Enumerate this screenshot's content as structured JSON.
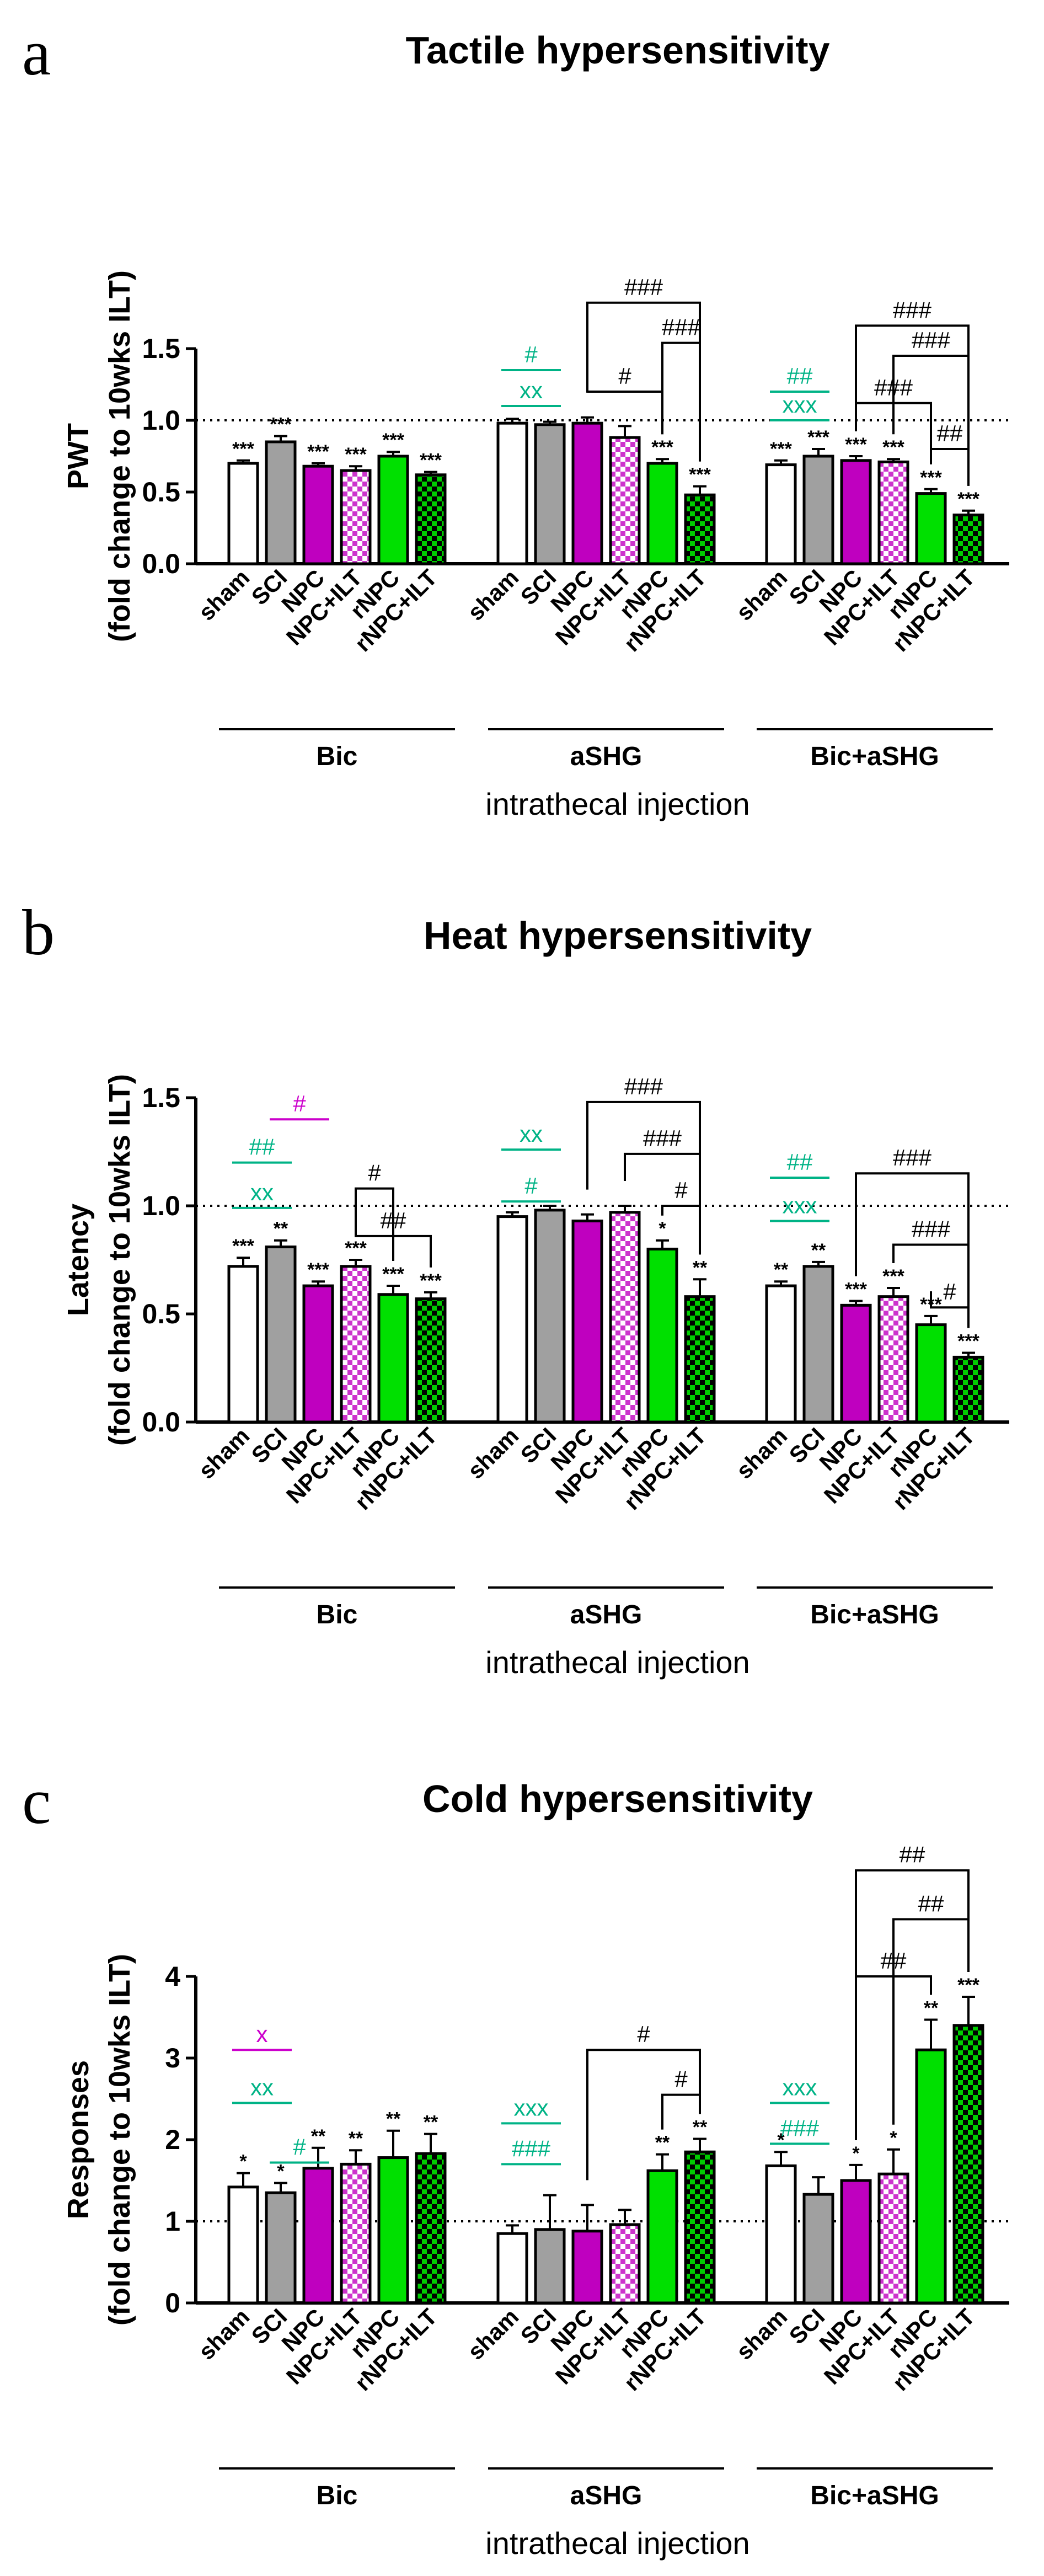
{
  "colors": {
    "sham": "#ffffff",
    "SCI": "#a0a0a0",
    "NPC": "#bf00bf",
    "NPC+ILT": "checker #cc33cc/#ffffff",
    "rNPC": "#00e000",
    "rNPC+ILT": "checker #00cc00/#000000",
    "teal_annotation": "#00b386",
    "magenta_annotation": "#cc00cc",
    "black_annotation": "#000000"
  },
  "x_axis_label": "intrathecal injection",
  "categories": [
    "sham",
    "SCI",
    "NPC",
    "NPC+ILT",
    "rNPC",
    "rNPC+ILT"
  ],
  "groups": [
    "Bic",
    "aSHG",
    "Bic+aSHG"
  ],
  "chart_data": [
    {
      "panel": "a",
      "type": "bar",
      "title": "Tactile hypersensitivity",
      "ylabel": "PWT",
      "ylabel2": "(fold change to 10wks ILT)",
      "xlabel": "intrathecal injection",
      "ylim": [
        0,
        1.5
      ],
      "yticks": [
        "0.0",
        "0.5",
        "1.0",
        "1.5"
      ],
      "reference_line": 1.0,
      "categories": [
        "sham",
        "SCI",
        "NPC",
        "NPC+ILT",
        "rNPC",
        "rNPC+ILT"
      ],
      "groups": [
        {
          "name": "Bic",
          "values": [
            0.7,
            0.85,
            0.68,
            0.65,
            0.75,
            0.62
          ],
          "errors": [
            0.02,
            0.04,
            0.02,
            0.03,
            0.03,
            0.02
          ],
          "stars": [
            "***",
            "***",
            "***",
            "***",
            "***",
            "***"
          ]
        },
        {
          "name": "aSHG",
          "values": [
            0.98,
            0.97,
            0.98,
            0.88,
            0.7,
            0.48
          ],
          "errors": [
            0.03,
            0.02,
            0.04,
            0.08,
            0.03,
            0.06
          ],
          "stars": [
            "",
            "",
            "",
            "",
            "***",
            "***"
          ]
        },
        {
          "name": "Bic+aSHG",
          "values": [
            0.69,
            0.75,
            0.72,
            0.71,
            0.49,
            0.34
          ],
          "errors": [
            0.03,
            0.05,
            0.03,
            0.02,
            0.03,
            0.03
          ],
          "stars": [
            "***",
            "***",
            "***",
            "***",
            "***",
            "***"
          ]
        }
      ],
      "comparisons": [
        {
          "group": "aSHG",
          "from": "sham",
          "to": "SCI",
          "text": "#",
          "color": "teal",
          "y": 1.35
        },
        {
          "group": "aSHG",
          "from": "sham",
          "to": "SCI",
          "text": "xx",
          "color": "teal",
          "y": 1.1
        },
        {
          "group": "aSHG",
          "from": "NPC",
          "to": "rNPC+ILT",
          "text": "###",
          "color": "black",
          "y": 1.82
        },
        {
          "group": "aSHG",
          "from": "rNPC",
          "to": "rNPC+ILT",
          "text": "###",
          "color": "black",
          "y": 1.54
        },
        {
          "group": "aSHG",
          "from": "NPC",
          "to": "rNPC",
          "text": "#",
          "color": "black",
          "y": 1.2
        },
        {
          "group": "Bic+aSHG",
          "from": "sham",
          "to": "SCI",
          "text": "##",
          "color": "teal",
          "y": 1.2
        },
        {
          "group": "Bic+aSHG",
          "from": "sham",
          "to": "SCI",
          "text": "xxx",
          "color": "teal",
          "y": 1.0
        },
        {
          "group": "Bic+aSHG",
          "from": "NPC",
          "to": "rNPC+ILT",
          "text": "###",
          "color": "black",
          "y": 1.66
        },
        {
          "group": "Bic+aSHG",
          "from": "NPC+ILT",
          "to": "rNPC+ILT",
          "text": "###",
          "color": "black",
          "y": 1.45
        },
        {
          "group": "Bic+aSHG",
          "from": "NPC",
          "to": "rNPC",
          "text": "###",
          "color": "black",
          "y": 1.12
        },
        {
          "group": "Bic+aSHG",
          "from": "rNPC",
          "to": "rNPC+ILT",
          "text": "##",
          "color": "black",
          "y": 0.8
        }
      ]
    },
    {
      "panel": "b",
      "type": "bar",
      "title": "Heat hypersensitivity",
      "ylabel": "Latency",
      "ylabel2": "(fold change to 10wks ILT)",
      "xlabel": "intrathecal injection",
      "ylim": [
        0,
        1.5
      ],
      "yticks": [
        "0.0",
        "0.5",
        "1.0",
        "1.5"
      ],
      "reference_line": 1.0,
      "categories": [
        "sham",
        "SCI",
        "NPC",
        "NPC+ILT",
        "rNPC",
        "rNPC+ILT"
      ],
      "groups": [
        {
          "name": "Bic",
          "values": [
            0.72,
            0.81,
            0.63,
            0.72,
            0.59,
            0.57
          ],
          "errors": [
            0.04,
            0.03,
            0.02,
            0.03,
            0.04,
            0.03
          ],
          "stars": [
            "***",
            "**",
            "***",
            "***",
            "***",
            "***"
          ]
        },
        {
          "name": "aSHG",
          "values": [
            0.95,
            0.98,
            0.93,
            0.97,
            0.8,
            0.58
          ],
          "errors": [
            0.02,
            0.02,
            0.03,
            0.03,
            0.04,
            0.08
          ],
          "stars": [
            "",
            "",
            "",
            "",
            "*",
            "**"
          ]
        },
        {
          "name": "Bic+aSHG",
          "values": [
            0.63,
            0.72,
            0.54,
            0.58,
            0.45,
            0.3
          ],
          "errors": [
            0.02,
            0.02,
            0.02,
            0.04,
            0.04,
            0.02
          ],
          "stars": [
            "**",
            "**",
            "***",
            "***",
            "***",
            "***"
          ]
        }
      ],
      "comparisons": [
        {
          "group": "Bic",
          "from": "SCI",
          "to": "NPC",
          "text": "#",
          "color": "magenta",
          "y": 1.4
        },
        {
          "group": "Bic",
          "from": "sham",
          "to": "SCI",
          "text": "##",
          "color": "teal",
          "y": 1.2
        },
        {
          "group": "Bic",
          "from": "sham",
          "to": "SCI",
          "text": "xx",
          "color": "teal",
          "y": 0.99
        },
        {
          "group": "Bic",
          "from": "NPC+ILT",
          "to": "rNPC",
          "text": "#",
          "color": "black",
          "y": 1.08
        },
        {
          "group": "Bic",
          "from": "NPC+ILT",
          "to": "rNPC+ILT",
          "text": "##",
          "color": "black",
          "y": 0.86
        },
        {
          "group": "aSHG",
          "from": "sham",
          "to": "SCI",
          "text": "xx",
          "color": "teal",
          "y": 1.26
        },
        {
          "group": "aSHG",
          "from": "sham",
          "to": "SCI",
          "text": "#",
          "color": "teal",
          "y": 1.02
        },
        {
          "group": "aSHG",
          "from": "NPC",
          "to": "rNPC+ILT",
          "text": "###",
          "color": "black",
          "y": 1.48
        },
        {
          "group": "aSHG",
          "from": "NPC+ILT",
          "to": "rNPC+ILT",
          "text": "###",
          "color": "black",
          "y": 1.24
        },
        {
          "group": "aSHG",
          "from": "rNPC",
          "to": "rNPC+ILT",
          "text": "#",
          "color": "black",
          "y": 1.0
        },
        {
          "group": "Bic+aSHG",
          "from": "sham",
          "to": "SCI",
          "text": "##",
          "color": "teal",
          "y": 1.13
        },
        {
          "group": "Bic+aSHG",
          "from": "sham",
          "to": "SCI",
          "text": "xxx",
          "color": "teal",
          "y": 0.93
        },
        {
          "group": "Bic+aSHG",
          "from": "NPC",
          "to": "rNPC+ILT",
          "text": "###",
          "color": "black",
          "y": 1.15
        },
        {
          "group": "Bic+aSHG",
          "from": "NPC+ILT",
          "to": "rNPC+ILT",
          "text": "###",
          "color": "black",
          "y": 0.82
        },
        {
          "group": "Bic+aSHG",
          "from": "rNPC",
          "to": "rNPC+ILT",
          "text": "#",
          "color": "black",
          "y": 0.53
        }
      ]
    },
    {
      "panel": "c",
      "type": "bar",
      "title": "Cold hypersensitivity",
      "ylabel": "Responses",
      "ylabel2": "(fold change to 10wks ILT)",
      "xlabel": "intrathecal injection",
      "ylim": [
        0,
        4
      ],
      "yticks": [
        "0",
        "1",
        "2",
        "3",
        "4"
      ],
      "reference_line": 1.0,
      "categories": [
        "sham",
        "SCI",
        "NPC",
        "NPC+ILT",
        "rNPC",
        "rNPC+ILT"
      ],
      "groups": [
        {
          "name": "Bic",
          "values": [
            1.42,
            1.35,
            1.65,
            1.7,
            1.78,
            1.83
          ],
          "errors": [
            0.17,
            0.12,
            0.25,
            0.17,
            0.33,
            0.24
          ],
          "stars": [
            "*",
            "*",
            "**",
            "**",
            "**",
            "**"
          ]
        },
        {
          "name": "aSHG",
          "values": [
            0.85,
            0.9,
            0.88,
            0.96,
            1.62,
            1.85
          ],
          "errors": [
            0.1,
            0.42,
            0.32,
            0.18,
            0.2,
            0.16
          ],
          "stars": [
            "",
            "",
            "",
            "",
            "**",
            "**"
          ]
        },
        {
          "name": "Bic+aSHG",
          "values": [
            1.68,
            1.33,
            1.5,
            1.58,
            3.1,
            3.4
          ],
          "errors": [
            0.17,
            0.21,
            0.19,
            0.3,
            0.37,
            0.35
          ],
          "stars": [
            "*",
            "",
            "*",
            "*",
            "**",
            "***"
          ]
        }
      ],
      "comparisons": [
        {
          "group": "Bic",
          "from": "sham",
          "to": "SCI",
          "text": "x",
          "color": "magenta",
          "y": 3.1
        },
        {
          "group": "Bic",
          "from": "sham",
          "to": "SCI",
          "text": "xx",
          "color": "teal",
          "y": 2.45
        },
        {
          "group": "Bic",
          "from": "SCI",
          "to": "NPC",
          "text": "#",
          "color": "teal",
          "y": 1.72
        },
        {
          "group": "aSHG",
          "from": "sham",
          "to": "SCI",
          "text": "xxx",
          "color": "teal",
          "y": 2.2
        },
        {
          "group": "aSHG",
          "from": "sham",
          "to": "SCI",
          "text": "###",
          "color": "teal",
          "y": 1.7
        },
        {
          "group": "aSHG",
          "from": "NPC",
          "to": "rNPC+ILT",
          "text": "#",
          "color": "black",
          "y": 3.1
        },
        {
          "group": "aSHG",
          "from": "rNPC",
          "to": "rNPC+ILT",
          "text": "#",
          "color": "black",
          "y": 2.55
        },
        {
          "group": "Bic+aSHG",
          "from": "sham",
          "to": "SCI",
          "text": "xxx",
          "color": "teal",
          "y": 2.45
        },
        {
          "group": "Bic+aSHG",
          "from": "sham",
          "to": "SCI",
          "text": "###",
          "color": "teal",
          "y": 1.95
        },
        {
          "group": "Bic+aSHG",
          "from": "NPC",
          "to": "rNPC+ILT",
          "text": "##",
          "color": "black",
          "y": 5.3
        },
        {
          "group": "Bic+aSHG",
          "from": "NPC+ILT",
          "to": "rNPC+ILT",
          "text": "##",
          "color": "black",
          "y": 4.7
        },
        {
          "group": "Bic+aSHG",
          "from": "NPC",
          "to": "rNPC",
          "text": "##",
          "color": "black",
          "y": 4.0
        }
      ]
    }
  ]
}
